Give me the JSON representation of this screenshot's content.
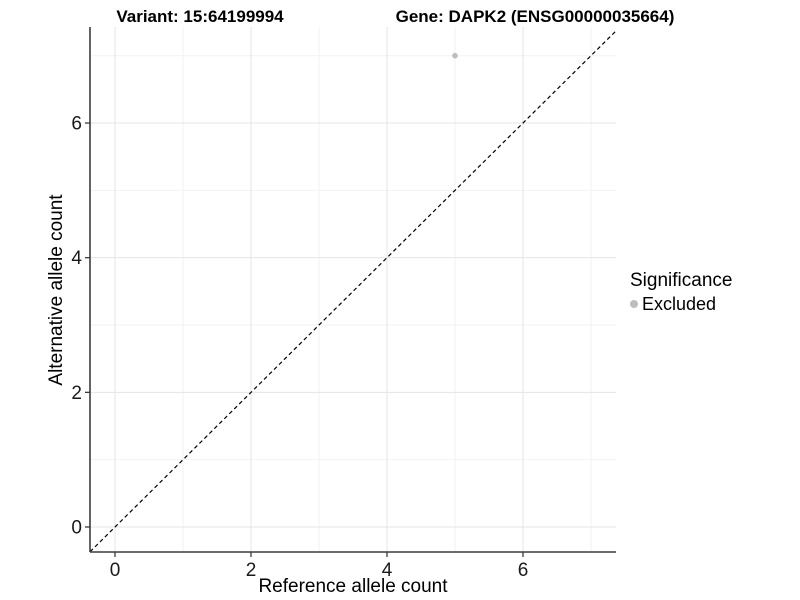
{
  "chart_data": {
    "type": "scatter",
    "title_left": "Variant: 15:64199994",
    "title_right": "Gene: DAPK2 (ENSG00000035664)",
    "xlabel": "Reference allele count",
    "ylabel": "Alternative allele count",
    "xlim": [
      -0.37,
      7.37
    ],
    "ylim": [
      -0.37,
      7.43
    ],
    "x_ticks": [
      0,
      2,
      4,
      6
    ],
    "y_ticks": [
      0,
      2,
      4,
      6
    ],
    "minor_x": [
      1,
      3,
      5,
      7
    ],
    "minor_y": [
      1,
      3,
      5,
      7
    ],
    "grid": true,
    "points": [
      {
        "x": 5,
        "y": 7,
        "series": "Excluded",
        "color": "#bdbdbd"
      }
    ],
    "reference_line": {
      "type": "identity",
      "style": "dashed",
      "color": "#000000"
    },
    "legend": {
      "title": "Significance",
      "position": "right",
      "entries": [
        {
          "label": "Excluded",
          "color": "#bdbdbd"
        }
      ]
    }
  },
  "colors": {
    "background": "#ffffff",
    "grid_major": "#e4e4e4",
    "grid_minor": "#f2f2f2",
    "axis_line": "#3c3c3c",
    "tick_label": "#1a1a1a",
    "point_gray": "#bdbdbd"
  }
}
